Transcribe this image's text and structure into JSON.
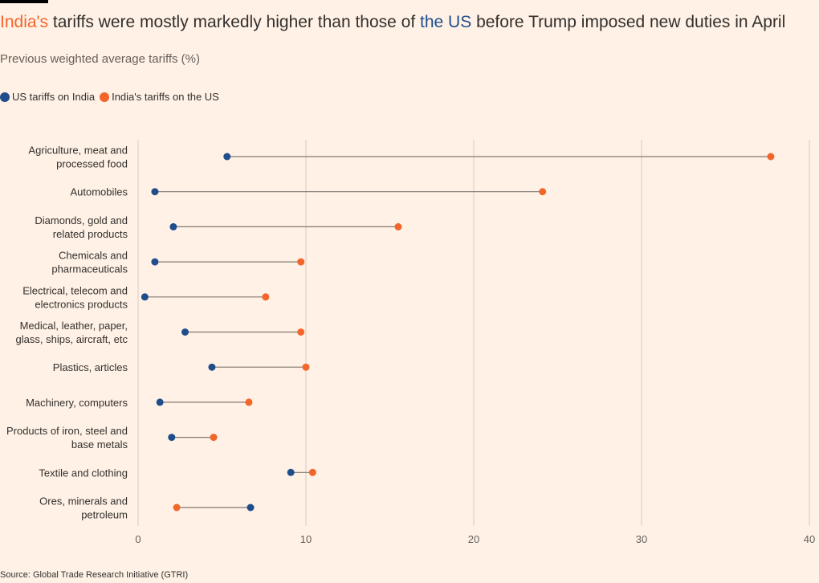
{
  "title": {
    "part1": "India's",
    "part2": " tariffs were mostly markedly higher than those of ",
    "part3": "the US",
    "part4": " before Trump imposed new duties in April"
  },
  "subtitle": "Previous weighted average tariffs (%)",
  "source": "Source: Global Trade Research Initiative (GTRI)",
  "colors": {
    "us": "#1F4E8C",
    "india": "#F2652B",
    "connector": "#807973",
    "grid": "#D9CCC1"
  },
  "chart_data": {
    "type": "dot-range",
    "xlim": [
      0,
      40
    ],
    "xticks": [
      0,
      10,
      20,
      30,
      40
    ],
    "grid": true,
    "legend_position": "top-left",
    "series": [
      {
        "name": "US tariffs on India",
        "color": "#1F4E8C",
        "values": [
          5.3,
          1.0,
          2.1,
          1.0,
          0.4,
          2.8,
          4.4,
          1.3,
          2.0,
          9.1,
          6.7
        ]
      },
      {
        "name": "India's tariffs on the US",
        "color": "#F2652B",
        "values": [
          37.7,
          24.1,
          15.5,
          9.7,
          7.6,
          9.7,
          10.0,
          6.6,
          4.5,
          10.4,
          2.3
        ]
      }
    ],
    "categories": [
      [
        "Agriculture, meat and",
        "processed food"
      ],
      [
        "Automobiles"
      ],
      [
        "Diamonds, gold and",
        "related products"
      ],
      [
        "Chemicals and",
        "pharmaceuticals"
      ],
      [
        "Electrical, telecom and",
        "electronics products"
      ],
      [
        "Medical, leather, paper,",
        "glass, ships, aircraft, etc"
      ],
      [
        "Plastics, articles"
      ],
      [
        "Machinery, computers"
      ],
      [
        "Products of iron, steel and",
        "base metals"
      ],
      [
        "Textile and clothing"
      ],
      [
        "Ores, minerals and",
        "petroleum"
      ]
    ]
  }
}
